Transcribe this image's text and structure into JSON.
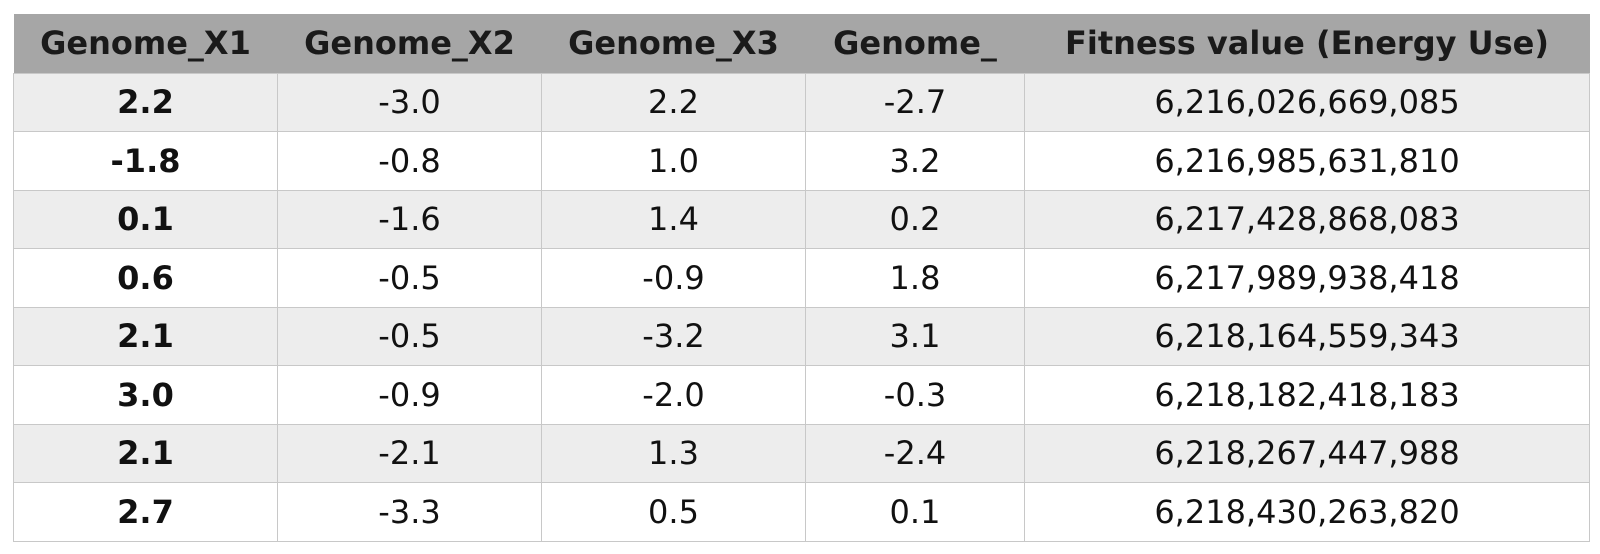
{
  "table": {
    "headers": [
      "Genome_X1",
      "Genome_X2",
      "Genome_X3",
      "Genome_",
      "Fitness value (Energy Use)"
    ],
    "rows": [
      [
        "2.2",
        "-3.0",
        "2.2",
        "-2.7",
        "6,216,026,669,085"
      ],
      [
        "-1.8",
        "-0.8",
        "1.0",
        "3.2",
        "6,216,985,631,810"
      ],
      [
        "0.1",
        "-1.6",
        "1.4",
        "0.2",
        "6,217,428,868,083"
      ],
      [
        "0.6",
        "-0.5",
        "-0.9",
        "1.8",
        "6,217,989,938,418"
      ],
      [
        "2.1",
        "-0.5",
        "-3.2",
        "3.1",
        "6,218,164,559,343"
      ],
      [
        "3.0",
        "-0.9",
        "-2.0",
        "-0.3",
        "6,218,182,418,183"
      ],
      [
        "2.1",
        "-2.1",
        "1.3",
        "-2.4",
        "6,218,267,447,988"
      ],
      [
        "2.7",
        "-3.3",
        "0.5",
        "0.1",
        "6,218,430,263,820"
      ]
    ]
  },
  "colors": {
    "header_background": "#a6a6a6",
    "odd_row_background": "#ededed",
    "even_row_background": "#ffffff",
    "grid_line": "#c8c8c8"
  }
}
